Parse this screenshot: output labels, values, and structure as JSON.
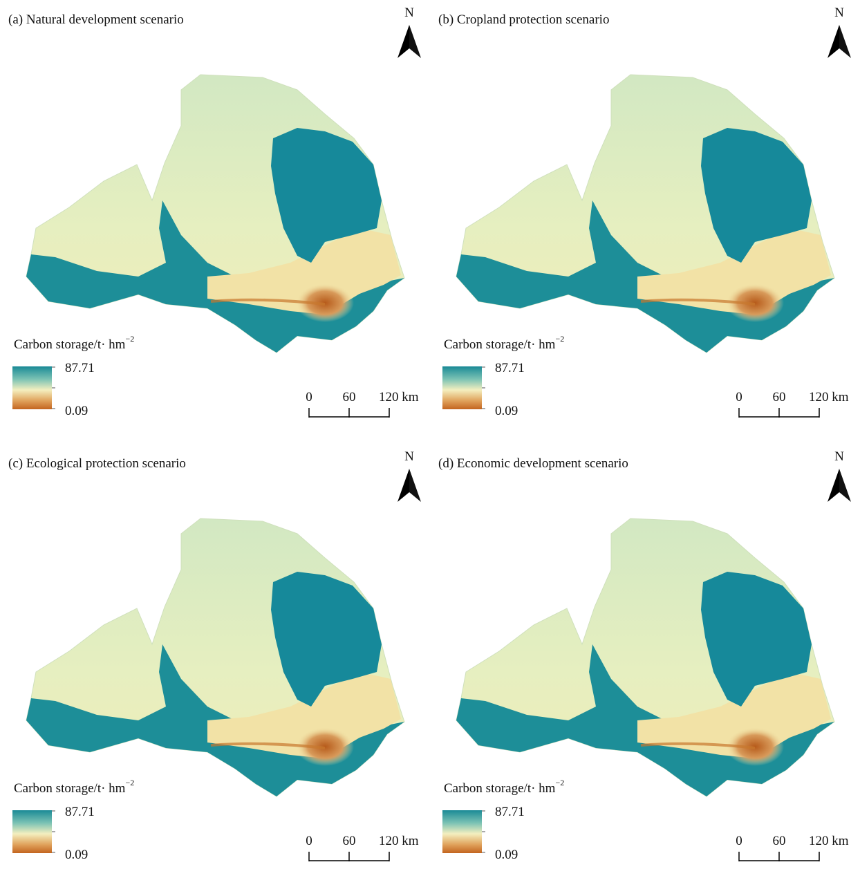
{
  "panels": [
    {
      "title": "(a) Natural development scenario",
      "north": "N",
      "legend_title": "Carbon storage/t· hm",
      "legend_unit_exponent": "−2",
      "legend_max": "87.71",
      "legend_min": "0.09",
      "scale_labels": [
        "0",
        "60",
        "120 km"
      ]
    },
    {
      "title": "(b) Cropland protection scenario",
      "north": "N",
      "legend_title": "Carbon storage/t· hm",
      "legend_unit_exponent": "−2",
      "legend_max": "87.71",
      "legend_min": "0.09",
      "scale_labels": [
        "0",
        "60",
        "120 km"
      ]
    },
    {
      "title": "(c) Ecological protection scenario",
      "north": "N",
      "legend_title": "Carbon storage/t· hm",
      "legend_unit_exponent": "−2",
      "legend_max": "87.71",
      "legend_min": "0.09",
      "scale_labels": [
        "0",
        "60",
        "120 km"
      ]
    },
    {
      "title": "(d) Economic development scenario",
      "north": "N",
      "legend_title": "Carbon storage/t· hm",
      "legend_unit_exponent": "−2",
      "legend_max": "87.71",
      "legend_min": "0.09",
      "scale_labels": [
        "0",
        "60",
        "120 km"
      ]
    }
  ]
}
